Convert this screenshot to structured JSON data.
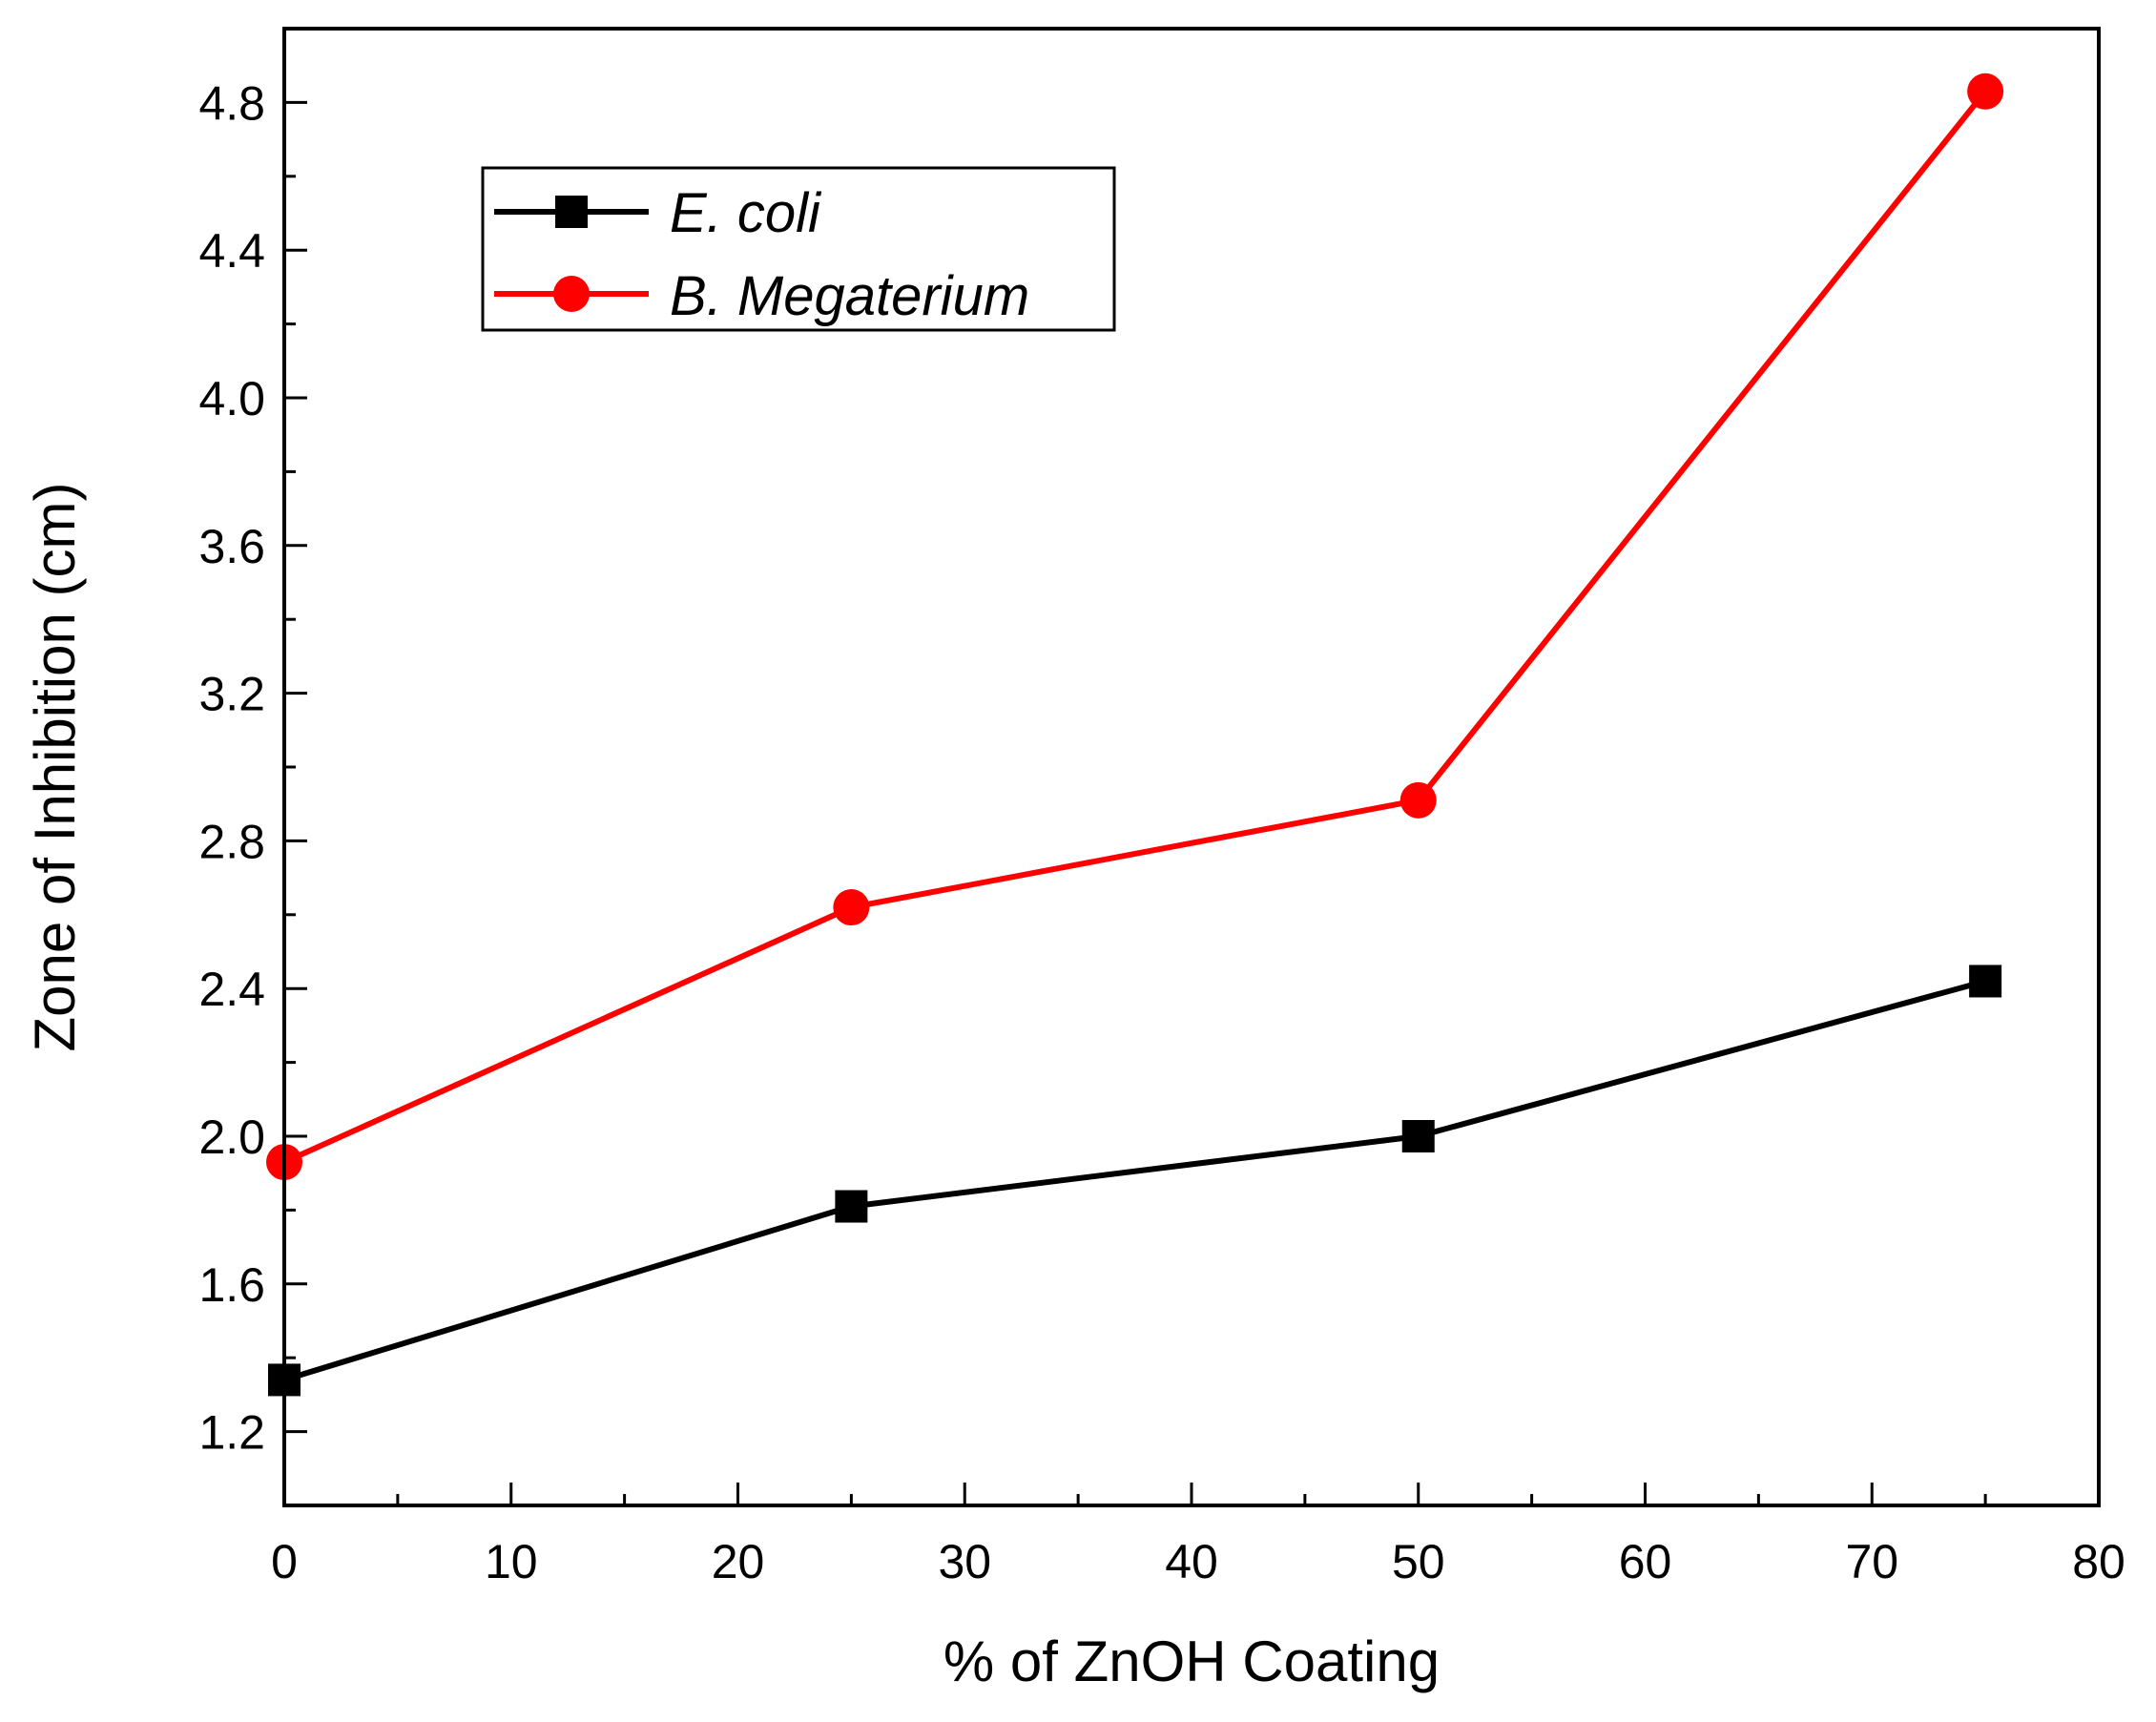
{
  "chart_data": {
    "type": "line",
    "title": "",
    "xlabel": "% of ZnOH Coating",
    "ylabel": "Zone of Inhibition (cm)",
    "xlim": [
      0,
      80
    ],
    "ylim": [
      1.0,
      5.0
    ],
    "xticks": [
      0,
      10,
      20,
      30,
      40,
      50,
      60,
      70,
      80
    ],
    "yticks": [
      1.2,
      1.6,
      2.0,
      2.4,
      2.8,
      3.2,
      3.6,
      4.0,
      4.4,
      4.8
    ],
    "xtick_labels": [
      "0",
      "10",
      "20",
      "30",
      "40",
      "50",
      "60",
      "70",
      "80"
    ],
    "ytick_labels": [
      "1.2",
      "1.6",
      "2.0",
      "2.4",
      "2.8",
      "3.2",
      "3.6",
      "4.0",
      "4.4",
      "4.8"
    ],
    "grid": false,
    "legend_position": "top-left",
    "x": [
      0,
      25,
      50,
      75
    ],
    "series": [
      {
        "name": "E. coli",
        "values": [
          1.34,
          1.81,
          2.0,
          2.42
        ],
        "color": "#000000",
        "marker": "square"
      },
      {
        "name": "B. Megaterium",
        "values": [
          1.93,
          2.62,
          2.91,
          4.83
        ],
        "color": "#ff0000",
        "marker": "circle"
      }
    ]
  }
}
